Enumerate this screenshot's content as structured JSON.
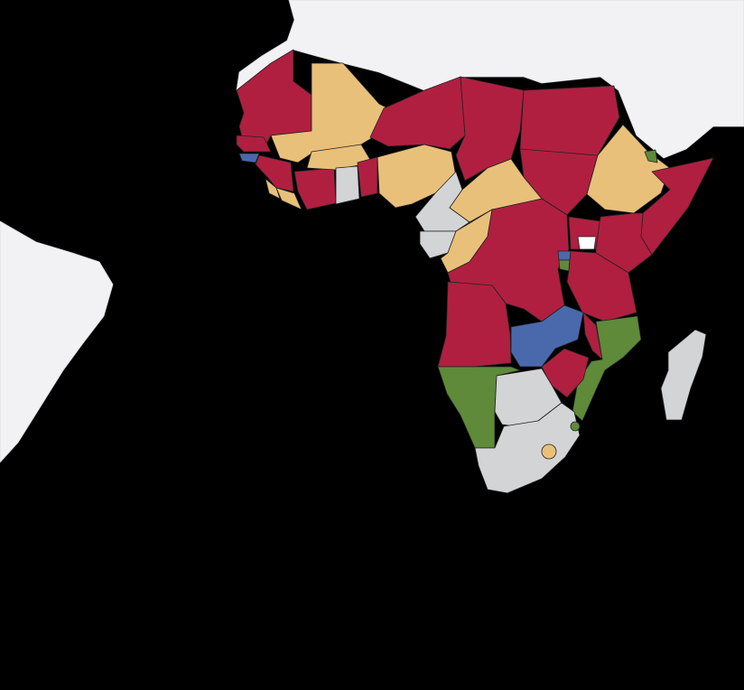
{
  "map": {
    "background": "#000000",
    "palette": {
      "red": "#b01f40",
      "tan": "#e8c07a",
      "blue": "#4a69ad",
      "green": "#5e8a3a",
      "gray": "#d3d4d6",
      "land": "#f2f2f5",
      "lake": "#ffffff"
    }
  }
}
